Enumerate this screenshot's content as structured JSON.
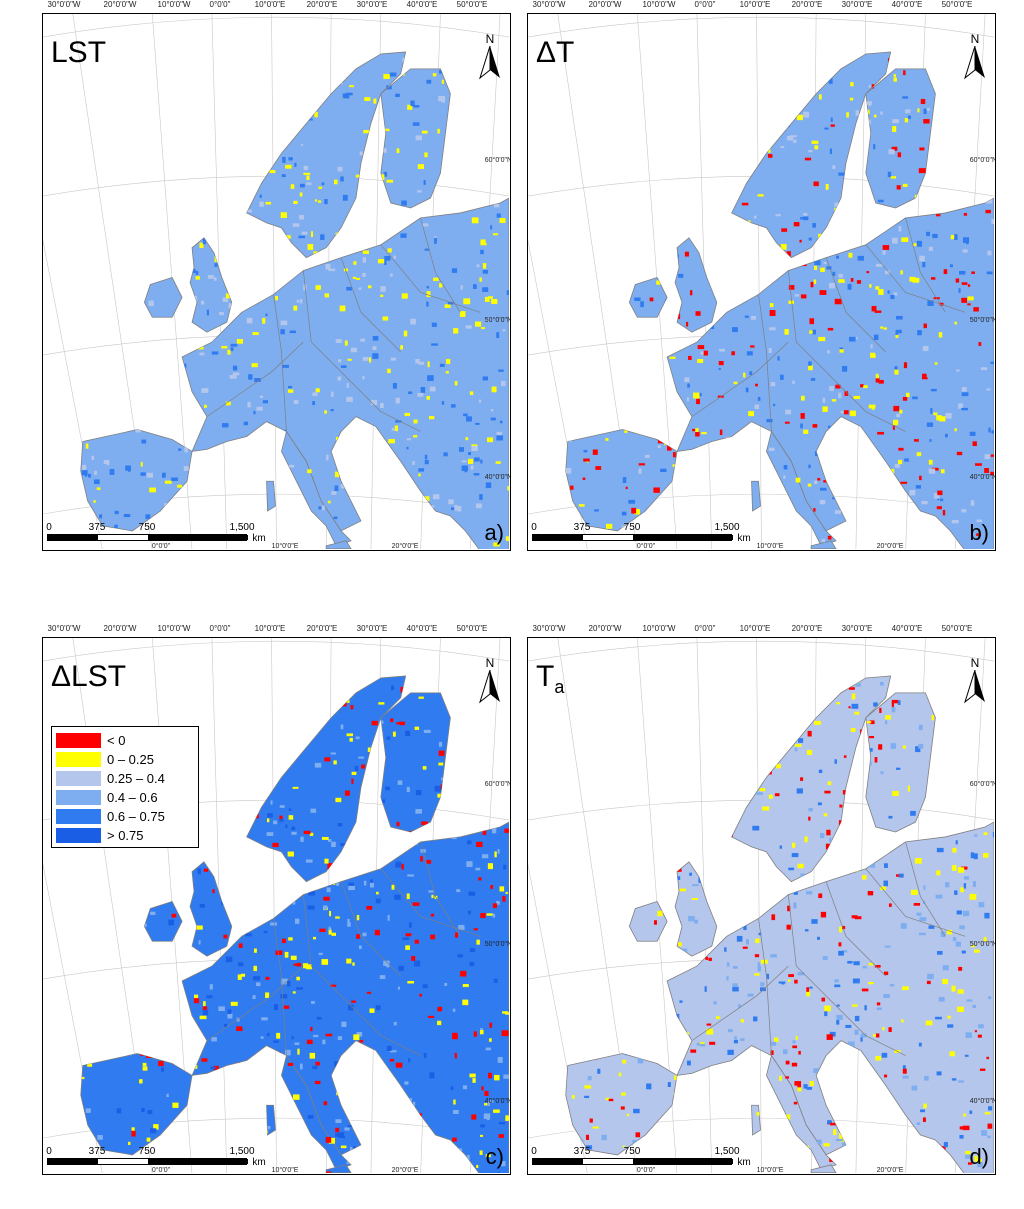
{
  "graticule": {
    "lon_top": [
      "30°0'0\"W",
      "20°0'0\"W",
      "10°0'0\"W",
      "0°0'0\"",
      "10°0'0\"E",
      "20°0'0\"E",
      "30°0'0\"E",
      "40°0'0\"E",
      "50°0'0\"E"
    ],
    "lat_right": [
      "60°0'0\"N",
      "50°0'0\"N",
      "40°0'0\"N"
    ],
    "lon_bottom": [
      "0°0'0\"",
      "10°0'0\"E",
      "20°0'0\"E"
    ]
  },
  "scale_bar": {
    "ticks": [
      "0",
      "375",
      "750",
      "1,500"
    ],
    "unit": "km"
  },
  "north_label": "N",
  "panels": [
    {
      "title": "LST",
      "label": "a)"
    },
    {
      "title": "ΔT",
      "label": "b)"
    },
    {
      "title": "ΔLST",
      "label": "c)"
    },
    {
      "title": "T",
      "title_sub": "a",
      "label": "d)"
    }
  ],
  "legend": {
    "items": [
      {
        "label": "< 0",
        "color": "#ff0000"
      },
      {
        "label": "0 – 0.25",
        "color": "#ffff00"
      },
      {
        "label": "0.25 – 0.4",
        "color": "#b4c6ec"
      },
      {
        "label": "0.4 – 0.6",
        "color": "#7eaef0"
      },
      {
        "label": "0.6 – 0.75",
        "color": "#2f7bef"
      },
      {
        "label": "> 0.75",
        "color": "#1a5ee6"
      }
    ]
  },
  "colors": {
    "sea": "#ffffff",
    "border": "#7f7f7f"
  }
}
